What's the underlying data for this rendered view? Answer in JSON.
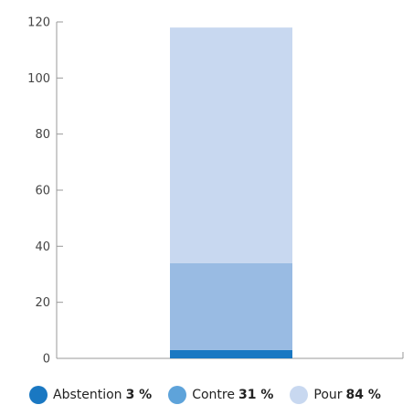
{
  "chart_data": {
    "type": "bar",
    "stacked": true,
    "categories": [
      ""
    ],
    "series": [
      {
        "name": "Abstention",
        "values": [
          3
        ],
        "label": "3 %",
        "color": "#1a78c2"
      },
      {
        "name": "Contre",
        "values": [
          31
        ],
        "label": "31 %",
        "color": "#99bbe3"
      },
      {
        "name": "Pour",
        "values": [
          84
        ],
        "label": "84 %",
        "color": "#c8d8f0"
      }
    ],
    "title": "",
    "xlabel": "",
    "ylabel": "",
    "ylim": [
      0,
      120
    ],
    "yticks": [
      "0",
      "20",
      "40",
      "60",
      "80",
      "100",
      "120"
    ],
    "grid": false,
    "legend": "bottom"
  }
}
